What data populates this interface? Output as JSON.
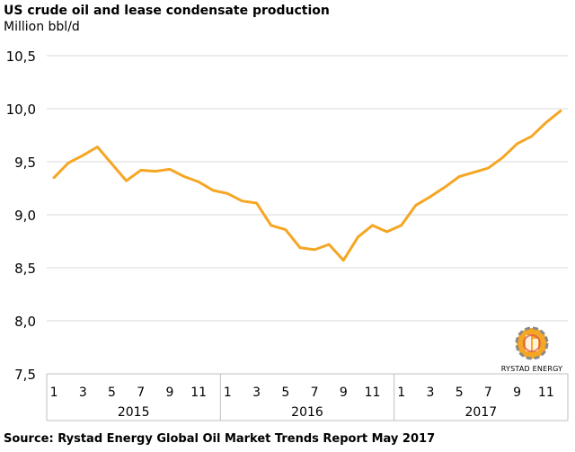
{
  "title": "US crude oil and lease condensate production",
  "subtitle": "Million bbl/d",
  "source": "Source: Rystad Energy Global Oil Market Trends Report May 2017",
  "logo_text": "RYSTAD ENERGY",
  "colors": {
    "line": "#f5a623",
    "grid": "#d9d9d9",
    "axis": "#bfbfbf"
  },
  "chart_data": {
    "type": "line",
    "title": "US crude oil and lease condensate production",
    "ylabel": "Million bbl/d",
    "xlabel": "",
    "ylim": [
      7.5,
      10.5
    ],
    "yticks": [
      7.5,
      8.0,
      8.5,
      9.0,
      9.5,
      10.0,
      10.5
    ],
    "ytick_labels": [
      "7,5",
      "8,0",
      "8,5",
      "9,0",
      "9,5",
      "10,0",
      "10,5"
    ],
    "x_month_labels": [
      "1",
      "3",
      "5",
      "7",
      "9",
      "11",
      "1",
      "3",
      "5",
      "7",
      "9",
      "11",
      "1",
      "3",
      "5",
      "7",
      "9",
      "11"
    ],
    "x_month_label_index": [
      0,
      2,
      4,
      6,
      8,
      10,
      12,
      14,
      16,
      18,
      20,
      22,
      24,
      26,
      28,
      30,
      32,
      34
    ],
    "years": [
      "2015",
      "2016",
      "2017"
    ],
    "grid": "horizontal",
    "values": [
      9.35,
      9.49,
      9.56,
      9.64,
      9.48,
      9.32,
      9.42,
      9.41,
      9.43,
      9.36,
      9.31,
      9.23,
      9.2,
      9.13,
      9.11,
      8.9,
      8.86,
      8.69,
      8.67,
      8.72,
      8.57,
      8.79,
      8.9,
      8.84,
      8.9,
      9.09,
      9.17,
      9.26,
      9.36,
      9.4,
      9.44,
      9.54,
      9.67,
      9.74,
      9.87,
      9.98
    ]
  }
}
